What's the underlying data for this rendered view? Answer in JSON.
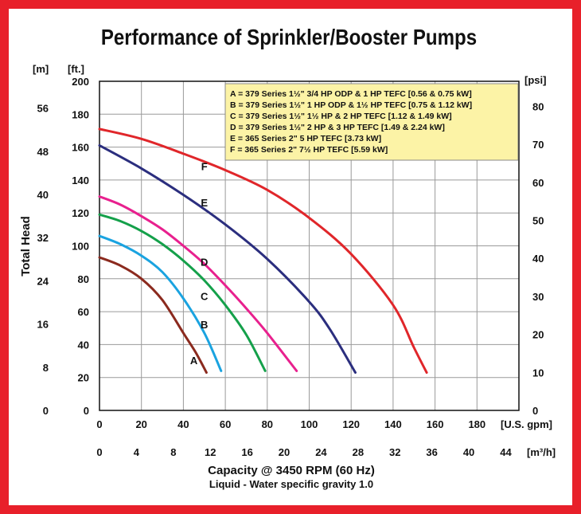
{
  "chart_data": {
    "type": "line",
    "title": "Performance of Sprinkler/Booster Pumps",
    "xlabel": "Capacity @ 3450 RPM (60 Hz)",
    "subtitle": "Liquid - Water specific gravity 1.0",
    "ylabel": "Total Head",
    "x_unit": "[U.S. gpm]",
    "x2_unit": "[m³/h]",
    "y_unit": "[ft.]",
    "y_left2_unit": "[m]",
    "y_right_unit": "[psi]",
    "xlim": [
      0,
      200
    ],
    "ylim": [
      0,
      200
    ],
    "grid": true,
    "legend_position": "top-right",
    "x_ticks": [
      "0",
      "20",
      "40",
      "60",
      "80",
      "100",
      "120",
      "140",
      "160",
      "180"
    ],
    "x_tick_values": [
      0,
      20,
      40,
      60,
      80,
      100,
      120,
      140,
      160,
      180
    ],
    "x2_ticks": [
      "0",
      "4",
      "8",
      "12",
      "16",
      "20",
      "24",
      "28",
      "32",
      "36",
      "40",
      "44"
    ],
    "x2_tick_values": [
      0,
      4,
      8,
      12,
      16,
      20,
      24,
      28,
      32,
      36,
      40,
      44
    ],
    "y_ticks": [
      "0",
      "20",
      "40",
      "60",
      "80",
      "100",
      "120",
      "140",
      "160",
      "180",
      "200"
    ],
    "y_tick_values": [
      0,
      20,
      40,
      60,
      80,
      100,
      120,
      140,
      160,
      180,
      200
    ],
    "y_m_ticks": [
      "0",
      "8",
      "16",
      "24",
      "32",
      "40",
      "48",
      "56"
    ],
    "y_m_tick_values": [
      0,
      8,
      16,
      24,
      32,
      40,
      48,
      56
    ],
    "y_psi_ticks": [
      "0",
      "10",
      "20",
      "30",
      "40",
      "50",
      "60",
      "70",
      "80"
    ],
    "y_psi_tick_values": [
      0,
      10,
      20,
      30,
      40,
      50,
      60,
      70,
      80
    ],
    "legend": [
      "A = 379 Series 1½\" 3/4 HP ODP & 1 HP TEFC [0.56 & 0.75 kW]",
      "B = 379 Series 1½\" 1 HP ODP & 1½ HP TEFC [0.75 & 1.12 kW]",
      "C = 379 Series 1½\" 1½ HP & 2 HP TEFC [1.12 & 1.49 kW]",
      "D = 379 Series 1½\" 2 HP & 3 HP TEFC [1.49 & 2.24 kW]",
      "E = 365 Series 2\" 5 HP TEFC [3.73 kW]",
      "F = 365 Series 2\" 7½ HP TEFC [5.59 kW]"
    ],
    "series": [
      {
        "name": "A",
        "color": "#8b2a1e",
        "label_at": [
          45,
          28
        ],
        "x": [
          0,
          10,
          20,
          30,
          40,
          46,
          51
        ],
        "y": [
          93,
          88,
          80,
          67,
          47,
          35,
          23
        ]
      },
      {
        "name": "B",
        "color": "#1aa3e0",
        "label_at": [
          50,
          50
        ],
        "x": [
          0,
          10,
          20,
          30,
          40,
          50,
          58
        ],
        "y": [
          106,
          101,
          94,
          84,
          68,
          47,
          24
        ]
      },
      {
        "name": "C",
        "color": "#14a04a",
        "label_at": [
          50,
          67
        ],
        "x": [
          0,
          10,
          20,
          30,
          40,
          50,
          60,
          70,
          79
        ],
        "y": [
          119,
          115,
          109,
          101,
          91,
          79,
          64,
          46,
          24
        ]
      },
      {
        "name": "D",
        "color": "#e8208e",
        "label_at": [
          50,
          88
        ],
        "x": [
          0,
          10,
          20,
          30,
          40,
          50,
          60,
          70,
          80,
          94
        ],
        "y": [
          130,
          125,
          118,
          110,
          100,
          89,
          76,
          62,
          47,
          24
        ]
      },
      {
        "name": "E",
        "color": "#2b2e7e",
        "label_at": [
          50,
          124
        ],
        "x": [
          0,
          20,
          40,
          60,
          80,
          100,
          110,
          122
        ],
        "y": [
          161,
          147,
          131,
          113,
          92,
          66,
          49,
          23
        ]
      },
      {
        "name": "F",
        "color": "#e0262a",
        "label_at": [
          50,
          146
        ],
        "x": [
          0,
          20,
          40,
          60,
          80,
          100,
          120,
          140,
          150,
          156
        ],
        "y": [
          171,
          165,
          156,
          146,
          134,
          117,
          95,
          64,
          38,
          23
        ]
      }
    ]
  }
}
